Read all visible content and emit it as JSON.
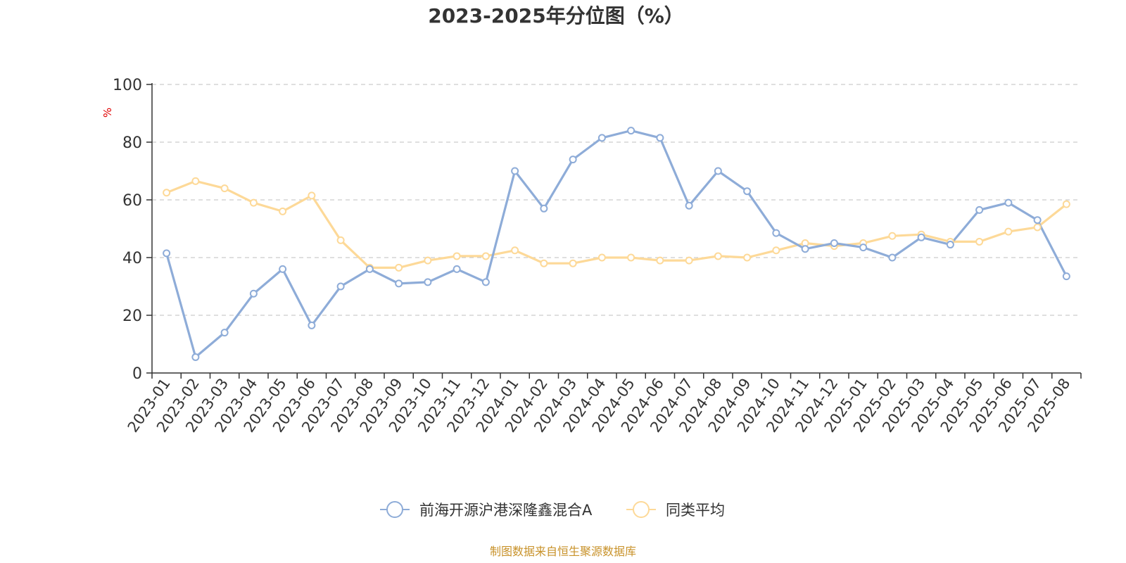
{
  "chart_data": {
    "type": "line",
    "title": "2023-2025年分位图（%）",
    "ylabel": "%",
    "ylim": [
      0,
      100
    ],
    "yticks": [
      0,
      20,
      40,
      60,
      80,
      100
    ],
    "grid": true,
    "legend_position": "bottom",
    "categories": [
      "2023-01",
      "2023-02",
      "2023-03",
      "2023-04",
      "2023-05",
      "2023-06",
      "2023-07",
      "2023-08",
      "2023-09",
      "2023-10",
      "2023-11",
      "2023-12",
      "2024-01",
      "2024-02",
      "2024-03",
      "2024-04",
      "2024-05",
      "2024-06",
      "2024-07",
      "2024-08",
      "2024-09",
      "2024-10",
      "2024-11",
      "2024-12",
      "2025-01",
      "2025-02",
      "2025-03",
      "2025-04",
      "2025-05",
      "2025-06",
      "2025-07",
      "2025-08"
    ],
    "series": [
      {
        "name": "前海开源沪港深隆鑫混合A",
        "color": "#8eacd8",
        "values": [
          41.5,
          5.5,
          14,
          27.5,
          36,
          16.5,
          30,
          36,
          31,
          31.5,
          36,
          31.5,
          70,
          57,
          74,
          81.5,
          84,
          81.5,
          58,
          70,
          63,
          48.5,
          43,
          45,
          43.5,
          40,
          47,
          44.5,
          56.5,
          59,
          53,
          33.5
        ]
      },
      {
        "name": "同类平均",
        "color": "#fdd998",
        "values": [
          62.5,
          66.5,
          64,
          59,
          56,
          61.5,
          46,
          36.5,
          36.5,
          39,
          40.5,
          40.5,
          42.5,
          38,
          38,
          40,
          40,
          39,
          39,
          40.5,
          40,
          42.5,
          45,
          44,
          45,
          47.5,
          48,
          45.5,
          45.5,
          49,
          50.5,
          58.5
        ]
      }
    ]
  },
  "footer": {
    "source": "制图数据来自恒生聚源数据库"
  }
}
